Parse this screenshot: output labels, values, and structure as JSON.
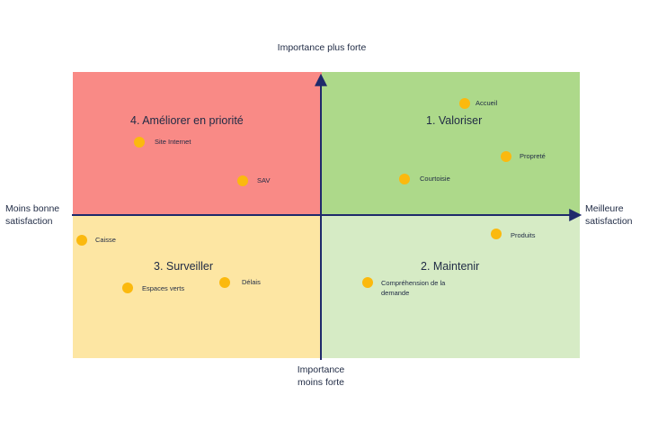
{
  "quadrants": {
    "top_left": "4. Améliorer en priorité",
    "top_right": "1. Valoriser",
    "bottom_left": "3. Surveiller",
    "bottom_right": "2. Maintenir"
  },
  "axes": {
    "top": "Importance plus forte",
    "bottom": "Importance moins forte",
    "left": "Moins bonne satisfaction",
    "right": "Meilleure satisfaction"
  },
  "points": [
    {
      "label": "Accueil"
    },
    {
      "label": "Propreté"
    },
    {
      "label": "Courtoisie"
    },
    {
      "label": "Site Internet"
    },
    {
      "label": "SAV"
    },
    {
      "label": "Caisse"
    },
    {
      "label": "Espaces verts"
    },
    {
      "label": "Délais"
    },
    {
      "label": "Produits"
    },
    {
      "label": "Compréhension de la demande"
    }
  ],
  "colors": {
    "improve": "#f98a86",
    "valorize": "#add98a",
    "watch": "#fde6a3",
    "maintain": "#d6ebc5",
    "axis": "#1f2a6b",
    "point": "#fbb90e"
  }
}
